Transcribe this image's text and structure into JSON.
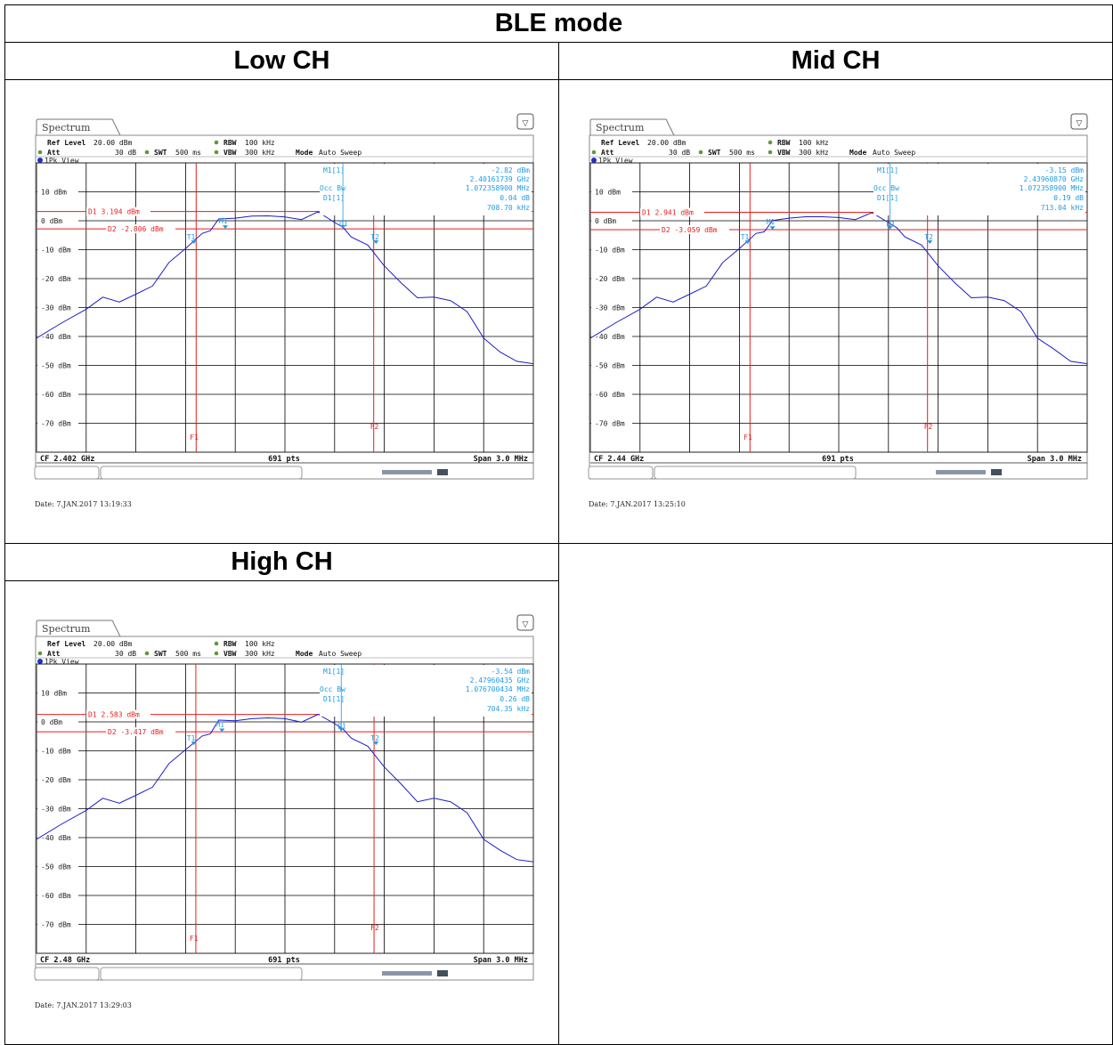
{
  "title": "BLE mode",
  "panels": [
    {
      "channel_label": "Low CH",
      "tab": "Spectrum",
      "ref_level_label": "Ref Level",
      "ref_level": "20.00 dBm",
      "att_label": "Att",
      "att": "30 dB",
      "swt_label": "SWT",
      "swt": "500 ms",
      "rbw_label": "RBW",
      "rbw": "100 kHz",
      "vbw_label": "VBW",
      "vbw": "300 kHz",
      "mode_label": "Mode",
      "mode": "Auto Sweep",
      "view": "1Pk View",
      "m1_label": "M1[1]",
      "m1_level": "-2.82 dBm",
      "m1_freq": "2.40161739 GHz",
      "occbw_label": "Occ Bw",
      "occbw": "1.072358900 MHz",
      "d1_label": "D1[1]",
      "d1_level": "0.04 dB",
      "d1_freq": "708.70 kHz",
      "line_d1": "D1 3.194 dBm",
      "line_d2": "D2 -2.806 dBm",
      "cf": "CF 2.402 GHz",
      "pts": "691 pts",
      "span": "Span 3.0 MHz",
      "date": "Date: 7.JAN.2017 13:19:33",
      "marker_labels": [
        "M1",
        "D1",
        "T1",
        "T2",
        "F1",
        "F2"
      ]
    },
    {
      "channel_label": "Mid CH",
      "tab": "Spectrum",
      "ref_level_label": "Ref Level",
      "ref_level": "20.00 dBm",
      "att_label": "Att",
      "att": "30 dB",
      "swt_label": "SWT",
      "swt": "500 ms",
      "rbw_label": "RBW",
      "rbw": "100 kHz",
      "vbw_label": "VBW",
      "vbw": "300 kHz",
      "mode_label": "Mode",
      "mode": "Auto Sweep",
      "view": "1Pk View",
      "m1_label": "M1[1]",
      "m1_level": "-3.15 dBm",
      "m1_freq": "2.43960870 GHz",
      "occbw_label": "Occ Bw",
      "occbw": "1.072358900 MHz",
      "d1_label": "D1[1]",
      "d1_level": "0.19 dB",
      "d1_freq": "713.04 kHz",
      "line_d1": "D1 2.941 dBm",
      "line_d2": "D2 -3.059 dBm",
      "cf": "CF 2.44 GHz",
      "pts": "691 pts",
      "span": "Span 3.0 MHz",
      "date": "Date: 7.JAN.2017 13:25:10",
      "marker_labels": [
        "M1",
        "D1",
        "T1",
        "T2",
        "F1",
        "F2"
      ]
    },
    {
      "channel_label": "High CH",
      "tab": "Spectrum",
      "ref_level_label": "Ref Level",
      "ref_level": "20.00 dBm",
      "att_label": "Att",
      "att": "30 dB",
      "swt_label": "SWT",
      "swt": "500 ms",
      "rbw_label": "RBW",
      "rbw": "100 kHz",
      "vbw_label": "VBW",
      "vbw": "300 kHz",
      "mode_label": "Mode",
      "mode": "Auto Sweep",
      "view": "1Pk View",
      "m1_label": "M1[1]",
      "m1_level": "-3.54 dBm",
      "m1_freq": "2.47960435 GHz",
      "occbw_label": "Occ Bw",
      "occbw": "1.076700434 MHz",
      "d1_label": "D1[1]",
      "d1_level": "0.26 dB",
      "d1_freq": "704.35 kHz",
      "line_d1": "D1 2.583 dBm",
      "line_d2": "D2 -3.417 dBm",
      "cf": "CF 2.48 GHz",
      "pts": "691 pts",
      "span": "Span 3.0 MHz",
      "date": "Date: 7.JAN.2017 13:29:03",
      "marker_labels": [
        "M1",
        "D1",
        "T1",
        "T2",
        "F1",
        "F2"
      ]
    }
  ],
  "colors": {
    "trace": "#1c1cc8",
    "marker": "#1e9be6",
    "lines": "#e61e1e",
    "grid": "#000000",
    "background": "#ffffff"
  },
  "chart_data": [
    {
      "type": "line",
      "title": "Low CH",
      "xlabel": "",
      "ylabel": "",
      "yticks": [
        "10 dBm",
        "0 dBm",
        "-10 dBm",
        "-20 dBm",
        "-30 dBm",
        "-40 dBm",
        "-50 dBm",
        "-60 dBm",
        "-70 dBm"
      ],
      "xlim": [
        -1.5,
        1.5
      ],
      "ylim": [
        -80,
        20
      ],
      "grid": true,
      "series": [
        {
          "x": [
            -1.5,
            -1.35,
            -1.2,
            -1.1,
            -1.0,
            -0.9,
            -0.8,
            -0.7,
            -0.6,
            -0.5,
            -0.45,
            -0.4,
            -0.3,
            -0.2,
            -0.1,
            0.0,
            0.1,
            0.2,
            0.3,
            0.35,
            0.4,
            0.5,
            0.6,
            0.7,
            0.8,
            0.9,
            1.0,
            1.1,
            1.2,
            1.3,
            1.4,
            1.5
          ],
          "values": [
            -40,
            -36,
            -30,
            -27,
            -27.5,
            -26,
            -22,
            -15,
            -9,
            -5,
            -2.8,
            0,
            1.5,
            1,
            2.3,
            0.7,
            1,
            2.5,
            0,
            -2.8,
            -5,
            -9,
            -15,
            -22,
            -26,
            -27,
            -27,
            -32,
            -40,
            -46,
            -48,
            -50
          ]
        }
      ],
      "markers": {
        "M1": [
          -0.36,
          -2.82
        ],
        "D1": [
          0.35,
          -2.78
        ],
        "T1": [
          -0.55,
          -8
        ],
        "T2": [
          0.55,
          -8
        ],
        "F1": -0.536,
        "F2": 0.536
      }
    },
    {
      "type": "line",
      "title": "Mid CH",
      "xlabel": "",
      "ylabel": "",
      "yticks": [
        "10 dBm",
        "0 dBm",
        "-10 dBm",
        "-20 dBm",
        "-30 dBm",
        "-40 dBm",
        "-50 dBm",
        "-60 dBm",
        "-70 dBm"
      ],
      "xlim": [
        -1.5,
        1.5
      ],
      "ylim": [
        -80,
        20
      ],
      "grid": true,
      "series": [
        {
          "x": [
            -1.5,
            -1.35,
            -1.2,
            -1.1,
            -1.0,
            -0.9,
            -0.8,
            -0.7,
            -0.6,
            -0.5,
            -0.45,
            -0.4,
            -0.3,
            -0.2,
            -0.1,
            0.0,
            0.1,
            0.2,
            0.3,
            0.35,
            0.4,
            0.5,
            0.6,
            0.7,
            0.8,
            0.9,
            1.0,
            1.1,
            1.2,
            1.3,
            1.4,
            1.5
          ],
          "values": [
            -40,
            -36,
            -30,
            -27,
            -27.5,
            -26,
            -22,
            -15,
            -9,
            -5,
            -3.2,
            -0.5,
            1.5,
            0.8,
            2,
            0.5,
            1,
            2.2,
            0,
            -3,
            -5,
            -9,
            -15,
            -22,
            -26,
            -27,
            -27,
            -32,
            -40,
            -45,
            -48,
            -50
          ]
        }
      ],
      "markers": {
        "M1": [
          -0.4,
          -3.15
        ],
        "D1": [
          0.31,
          -2.96
        ],
        "T1": [
          -0.55,
          -8
        ],
        "T2": [
          0.55,
          -8
        ],
        "F1": -0.536,
        "F2": 0.536
      }
    },
    {
      "type": "line",
      "title": "High CH",
      "xlabel": "",
      "ylabel": "",
      "yticks": [
        "10 dBm",
        "0 dBm",
        "-10 dBm",
        "-20 dBm",
        "-30 dBm",
        "-40 dBm",
        "-50 dBm",
        "-60 dBm",
        "-70 dBm"
      ],
      "xlim": [
        -1.5,
        1.5
      ],
      "ylim": [
        -80,
        20
      ],
      "grid": true,
      "series": [
        {
          "x": [
            -1.5,
            -1.35,
            -1.2,
            -1.1,
            -1.0,
            -0.9,
            -0.8,
            -0.7,
            -0.6,
            -0.5,
            -0.45,
            -0.4,
            -0.3,
            -0.2,
            -0.1,
            0.0,
            0.1,
            0.2,
            0.3,
            0.35,
            0.4,
            0.5,
            0.6,
            0.7,
            0.8,
            0.9,
            1.0,
            1.1,
            1.2,
            1.3,
            1.4,
            1.5
          ],
          "values": [
            -40,
            -36,
            -30,
            -27,
            -27.5,
            -26,
            -22,
            -15,
            -9,
            -5.5,
            -3.5,
            0,
            1,
            0.5,
            2,
            0.5,
            0.5,
            2,
            0,
            -3,
            -5,
            -9,
            -15,
            -22,
            -27,
            -27,
            -27,
            -32,
            -40,
            -45,
            -47,
            -49
          ]
        }
      ],
      "markers": {
        "M1": [
          -0.38,
          -3.54
        ],
        "D1": [
          0.34,
          -3.28
        ],
        "T1": [
          -0.55,
          -8
        ],
        "T2": [
          0.55,
          -8
        ],
        "F1": -0.538,
        "F2": 0.538
      }
    }
  ]
}
